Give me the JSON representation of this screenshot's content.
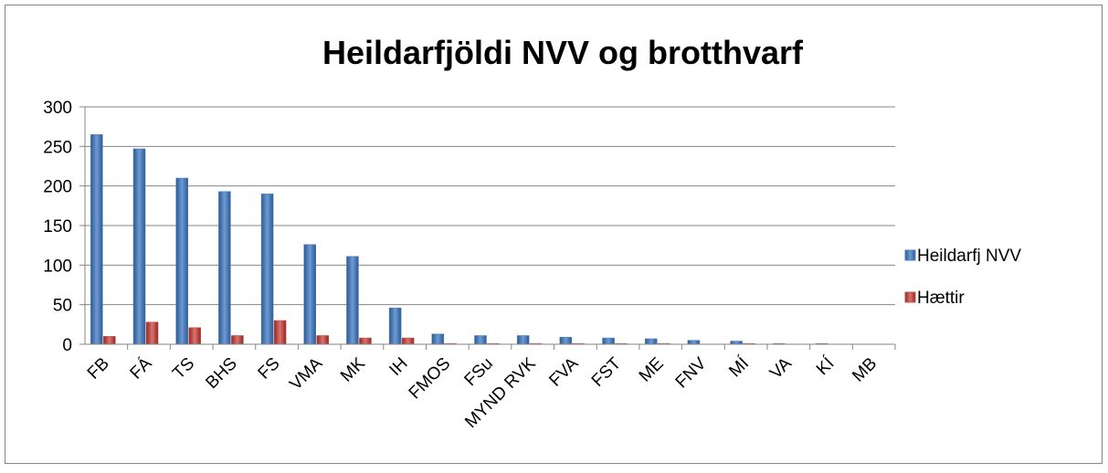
{
  "chart_data": {
    "type": "bar",
    "title": "Heildarfjöldi NVV og brotthvarf",
    "categories": [
      "FB",
      "FÁ",
      "TS",
      "BHS",
      "FS",
      "VMA",
      "MK",
      "IH",
      "FMOS",
      "FSu",
      "MYND RVK",
      "FVA",
      "FST",
      "ME",
      "FNV",
      "MÍ",
      "VA",
      "KÍ",
      "MB"
    ],
    "series": [
      {
        "name": "Heildarfj NVV",
        "color": "#4f81bd",
        "values": [
          265,
          247,
          210,
          193,
          190,
          126,
          111,
          46,
          13,
          11,
          11,
          9,
          8,
          7,
          5,
          4,
          1,
          1,
          0
        ]
      },
      {
        "name": "Hættir",
        "color": "#c0504d",
        "values": [
          10,
          28,
          21,
          11,
          30,
          11,
          8,
          8,
          1,
          1,
          1,
          1,
          1,
          1,
          0,
          1,
          0,
          0,
          0
        ]
      }
    ],
    "ylim": [
      0,
      300
    ],
    "yticks": [
      0,
      50,
      100,
      150,
      200,
      250,
      300
    ],
    "grid": true,
    "legend": "right"
  }
}
